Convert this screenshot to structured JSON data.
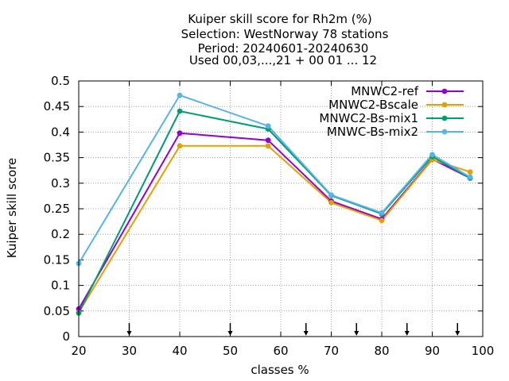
{
  "chart_data": {
    "type": "line",
    "title_lines": [
      "Kuiper skill score  for Rh2m (%)",
      "Selection: WestNorway     78 stations",
      "Period: 20240601-20240630",
      "Used 00,03,...,21 + 00 01 ... 12"
    ],
    "xlabel": "classes %",
    "ylabel": "Kuiper skill score",
    "xlim": [
      20,
      100
    ],
    "ylim": [
      0,
      0.5
    ],
    "xticks": [
      20,
      30,
      40,
      50,
      60,
      70,
      80,
      90,
      100
    ],
    "yticks": [
      0,
      0.05,
      0.1,
      0.15,
      0.2,
      0.25,
      0.3,
      0.35,
      0.4,
      0.45,
      0.5
    ],
    "xtick_labels": [
      "20",
      "30",
      "40",
      "50",
      "60",
      "70",
      "80",
      "90",
      "100"
    ],
    "ytick_labels": [
      "0",
      "0.05",
      "0.1",
      "0.15",
      "0.2",
      "0.25",
      "0.3",
      "0.35",
      "0.4",
      "0.45",
      "0.5"
    ],
    "grid": true,
    "legend_position": "top-right",
    "arrow_markers_x": [
      30,
      50,
      65,
      75,
      85,
      95
    ],
    "series": [
      {
        "name": "MNWC2-ref",
        "color": "#9400d3",
        "x": [
          20,
          40,
          57.5,
          70,
          80,
          90,
          97.5
        ],
        "y": [
          0.054,
          0.398,
          0.384,
          0.265,
          0.23,
          0.347,
          0.31
        ]
      },
      {
        "name": "MNWC2-Bscale",
        "color": "#e69f00",
        "x": [
          20,
          40,
          57.5,
          70,
          80,
          90,
          97.5
        ],
        "y": [
          0.047,
          0.373,
          0.373,
          0.262,
          0.227,
          0.346,
          0.322
        ]
      },
      {
        "name": "MNWC2-Bs-mix1",
        "color": "#009e73",
        "x": [
          20,
          40,
          57.5,
          70,
          80,
          90,
          97.5
        ],
        "y": [
          0.046,
          0.441,
          0.406,
          0.276,
          0.24,
          0.352,
          0.31
        ]
      },
      {
        "name": "MNWC-Bs-mix2",
        "color": "#56b4e9",
        "x": [
          20,
          40,
          57.5,
          70,
          80,
          90,
          97.5
        ],
        "y": [
          0.143,
          0.472,
          0.412,
          0.277,
          0.242,
          0.356,
          0.312
        ]
      }
    ]
  }
}
